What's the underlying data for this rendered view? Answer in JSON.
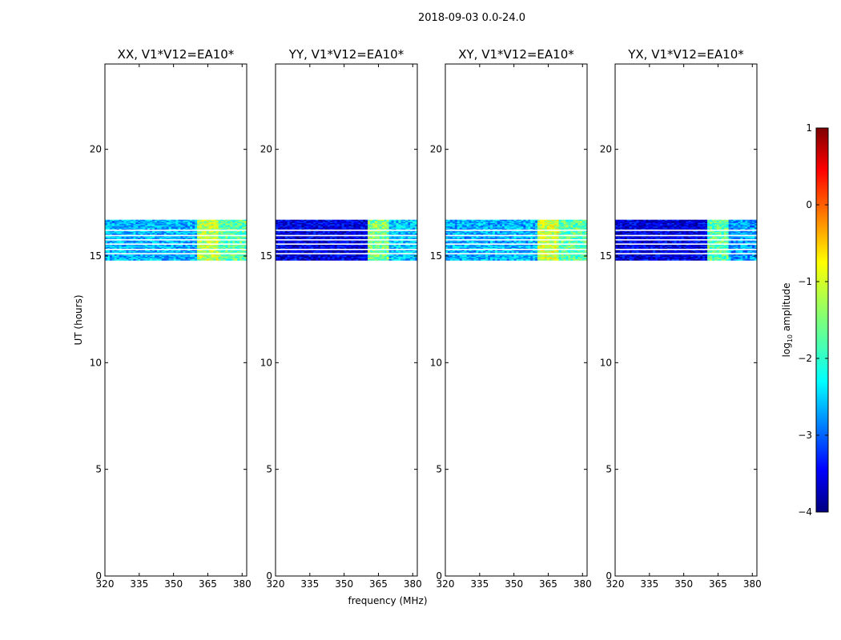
{
  "figure_title": "2018-09-03 0.0-24.0",
  "xlabel": "frequency (MHz)",
  "ylabel": "UT (hours)",
  "colorbar": {
    "label": "log",
    "label_sub": "10",
    "label_rest": " amplitude",
    "range": [
      -4,
      1
    ],
    "ticks": [
      "1",
      "0",
      "−1",
      "−2",
      "−3",
      "−4"
    ],
    "tick_values": [
      1,
      0,
      -1,
      -2,
      -3,
      -4
    ],
    "colormap": "jet"
  },
  "colors": {
    "axis": "#000000",
    "background": "#ffffff",
    "gap_line": "#ffffff"
  },
  "chart_data": [
    {
      "type": "heatmap",
      "title": "XX, V1*V12=EA10*",
      "xlim": [
        320,
        382
      ],
      "ylim": [
        0,
        24
      ],
      "xticks": [
        320,
        335,
        350,
        365,
        380
      ],
      "xtick_labels": [
        "320",
        "335",
        "350",
        "365",
        "380"
      ],
      "yticks": [
        0,
        5,
        10,
        15,
        20
      ],
      "ytick_labels": [
        "0",
        "5",
        "10",
        "15",
        "20"
      ],
      "data_time_range_hours": [
        14.8,
        16.7
      ],
      "gap_times_hours": [
        15.1,
        15.3,
        15.55,
        15.75,
        15.95,
        16.2
      ],
      "bands": [
        {
          "freq_range_mhz": [
            320,
            360
          ],
          "log_amplitude": -2.5
        },
        {
          "freq_range_mhz": [
            360,
            370
          ],
          "log_amplitude": -1.2
        },
        {
          "freq_range_mhz": [
            370,
            382
          ],
          "log_amplitude": -1.7
        }
      ]
    },
    {
      "type": "heatmap",
      "title": "YY, V1*V12=EA10*",
      "xlim": [
        320,
        382
      ],
      "ylim": [
        0,
        24
      ],
      "xticks": [
        320,
        335,
        350,
        365,
        380
      ],
      "xtick_labels": [
        "320",
        "335",
        "350",
        "365",
        "380"
      ],
      "yticks": [
        0,
        5,
        10,
        15,
        20
      ],
      "ytick_labels": [
        "0",
        "5",
        "10",
        "15",
        "20"
      ],
      "data_time_range_hours": [
        14.8,
        16.7
      ],
      "gap_times_hours": [
        15.1,
        15.3,
        15.55,
        15.75,
        15.95,
        16.2
      ],
      "bands": [
        {
          "freq_range_mhz": [
            320,
            360
          ],
          "log_amplitude": -3.5
        },
        {
          "freq_range_mhz": [
            360,
            370
          ],
          "log_amplitude": -1.5
        },
        {
          "freq_range_mhz": [
            370,
            382
          ],
          "log_amplitude": -2.4
        }
      ]
    },
    {
      "type": "heatmap",
      "title": "XY, V1*V12=EA10*",
      "xlim": [
        320,
        382
      ],
      "ylim": [
        0,
        24
      ],
      "xticks": [
        320,
        335,
        350,
        365,
        380
      ],
      "xtick_labels": [
        "320",
        "335",
        "350",
        "365",
        "380"
      ],
      "yticks": [
        0,
        5,
        10,
        15,
        20
      ],
      "ytick_labels": [
        "0",
        "5",
        "10",
        "15",
        "20"
      ],
      "data_time_range_hours": [
        14.8,
        16.7
      ],
      "gap_times_hours": [
        15.1,
        15.3,
        15.55,
        15.75,
        15.95,
        16.2
      ],
      "bands": [
        {
          "freq_range_mhz": [
            320,
            360
          ],
          "log_amplitude": -2.5
        },
        {
          "freq_range_mhz": [
            360,
            370
          ],
          "log_amplitude": -1.1
        },
        {
          "freq_range_mhz": [
            370,
            382
          ],
          "log_amplitude": -1.7
        }
      ]
    },
    {
      "type": "heatmap",
      "title": "YX, V1*V12=EA10*",
      "xlim": [
        320,
        382
      ],
      "ylim": [
        0,
        24
      ],
      "xticks": [
        320,
        335,
        350,
        365,
        380
      ],
      "xtick_labels": [
        "320",
        "335",
        "350",
        "365",
        "380"
      ],
      "yticks": [
        0,
        5,
        10,
        15,
        20
      ],
      "ytick_labels": [
        "0",
        "5",
        "10",
        "15",
        "20"
      ],
      "data_time_range_hours": [
        14.8,
        16.7
      ],
      "gap_times_hours": [
        15.1,
        15.3,
        15.55,
        15.75,
        15.95,
        16.2
      ],
      "bands": [
        {
          "freq_range_mhz": [
            320,
            360
          ],
          "log_amplitude": -3.5
        },
        {
          "freq_range_mhz": [
            360,
            370
          ],
          "log_amplitude": -1.7
        },
        {
          "freq_range_mhz": [
            370,
            382
          ],
          "log_amplitude": -2.6
        }
      ]
    }
  ]
}
